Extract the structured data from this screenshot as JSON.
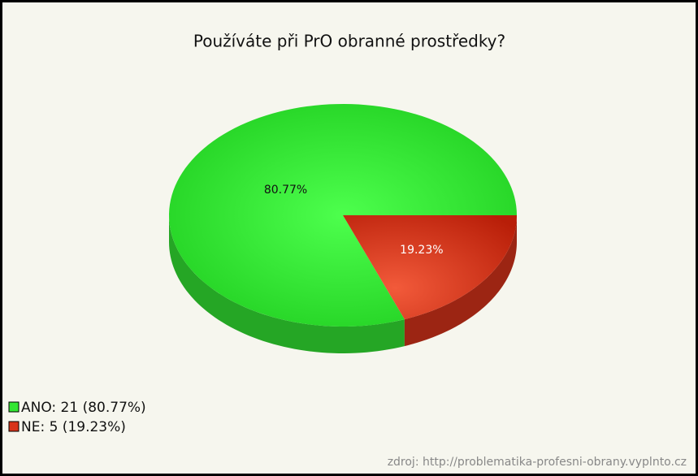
{
  "chart_data": {
    "type": "pie3d",
    "title": "Používáte při PrO obranné prostředky?",
    "categories": [
      "ANO",
      "NE"
    ],
    "values": [
      80.77,
      19.23
    ],
    "value_labels": [
      "80.77%",
      "19.23%"
    ],
    "legend_labels": [
      "ANO: 21 (80.77%)",
      "NE: 5 (19.23%)"
    ],
    "colors": [
      "#33e633",
      "#d8331a"
    ],
    "source": "zdroj: http://problematika-profesni-obrany.vyplnto.cz"
  }
}
